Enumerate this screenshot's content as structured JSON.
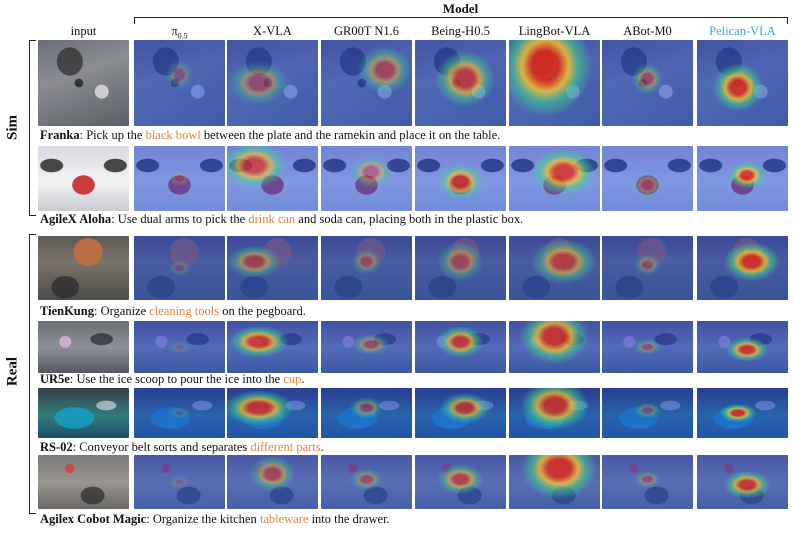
{
  "header": {
    "title": "Model",
    "columns": [
      {
        "label": "input",
        "sub": ""
      },
      {
        "label": "π",
        "sub": "0.5"
      },
      {
        "label": "X-VLA",
        "sub": ""
      },
      {
        "label": "GR00T N1.6",
        "sub": ""
      },
      {
        "label": "Being-H0.5",
        "sub": ""
      },
      {
        "label": "LingBot-VLA",
        "sub": ""
      },
      {
        "label": "ABot-M0",
        "sub": ""
      },
      {
        "label": "Pelican-VLA",
        "sub": ""
      }
    ],
    "highlight_color": "#3fa7c9"
  },
  "groups": [
    {
      "label": "Sim"
    },
    {
      "label": "Real"
    }
  ],
  "rows": [
    {
      "robot": "Franka",
      "before": ": Pick up the ",
      "highlight": "black bowl",
      "after": " between the plate and the ramekin and place it on the table."
    },
    {
      "robot": "AgileX Aloha",
      "before": ": Use dual arms to pick the ",
      "highlight": "drink can",
      "after": " and soda can, placing both in the plastic box."
    },
    {
      "robot": "TienKung",
      "before": ": Organize ",
      "highlight": "cleaning tools",
      "after": " on the pegboard."
    },
    {
      "robot": "UR5e",
      "before": ": Use the ice scoop to pour the ice into the ",
      "highlight": "cup",
      "after": "."
    },
    {
      "robot": "RS-02",
      "before": ": Conveyor belt sorts and separates ",
      "highlight": "different parts",
      "after": "."
    },
    {
      "robot": "Agilex Cobot Magic",
      "before": ": Organize the kitchen ",
      "highlight": "tableware",
      "after": " into the drawer."
    }
  ],
  "colors": {
    "highlight_text": "#e8823a"
  }
}
